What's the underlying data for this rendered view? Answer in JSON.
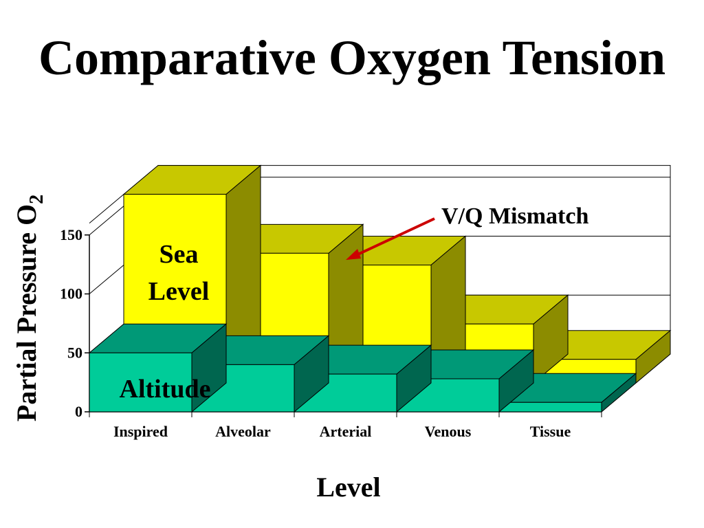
{
  "title": "Comparative Oxygen Tension",
  "chart_data": {
    "type": "bar",
    "style": "3d-stacked-depth",
    "categories": [
      "Inspired",
      "Alveolar",
      "Arterial",
      "Venous",
      "Tissue"
    ],
    "series": [
      {
        "name": "Sea Level",
        "values": [
          160,
          110,
          100,
          50,
          20
        ],
        "color": "#ffff00"
      },
      {
        "name": "Altitude",
        "values": [
          50,
          40,
          32,
          28,
          8
        ],
        "color": "#00cc99"
      }
    ],
    "xlabel": "Level",
    "ylabel_main": "Partial Pressure O",
    "ylabel_sub": "2",
    "yticks": [
      0,
      50,
      100,
      150
    ],
    "ylim": [
      0,
      160
    ],
    "grid": true,
    "annotation": {
      "text": "V/Q Mismatch",
      "target_category": "Alveolar"
    },
    "series_labels": {
      "sea_level_line1": "Sea",
      "sea_level_line2": "Level",
      "altitude": "Altitude"
    }
  }
}
